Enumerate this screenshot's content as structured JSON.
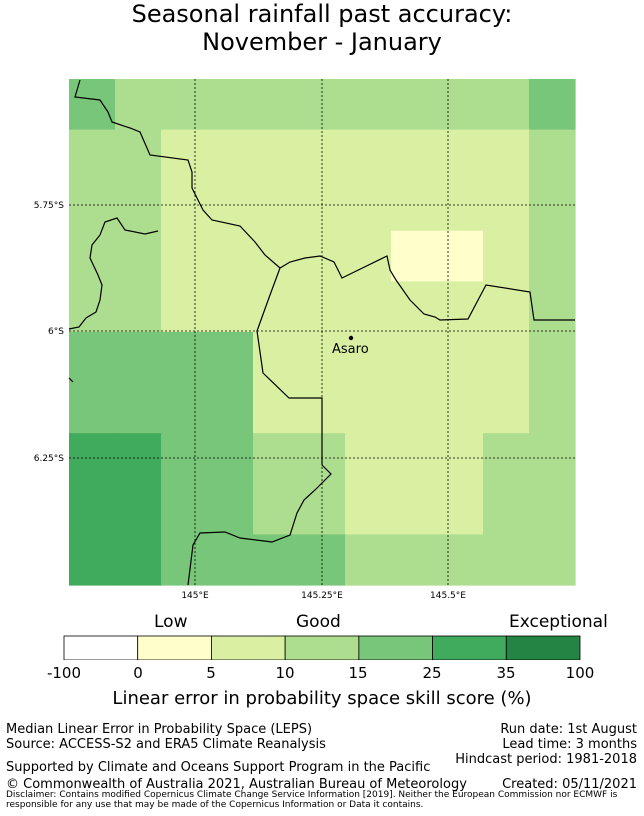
{
  "title": {
    "line1": "Seasonal rainfall past accuracy:",
    "line2": "November - January"
  },
  "map": {
    "lat_labels": [
      "5.75°S",
      "6°S",
      "6.25°S"
    ],
    "lon_labels": [
      "145°E",
      "145.25°E",
      "145.5°E"
    ],
    "place_label": "Asaro",
    "grid_values": [
      [
        15,
        10,
        10,
        10,
        10,
        10,
        10,
        10,
        10,
        10,
        15
      ],
      [
        10,
        10,
        5,
        5,
        5,
        5,
        5,
        5,
        5,
        5,
        10
      ],
      [
        10,
        10,
        5,
        5,
        5,
        5,
        5,
        5,
        5,
        5,
        10
      ],
      [
        10,
        10,
        5,
        5,
        5,
        5,
        5,
        0,
        0,
        5,
        10
      ],
      [
        10,
        10,
        5,
        5,
        5,
        5,
        5,
        5,
        5,
        5,
        10
      ],
      [
        15,
        15,
        15,
        15,
        5,
        5,
        5,
        5,
        5,
        5,
        10
      ],
      [
        15,
        15,
        15,
        15,
        5,
        5,
        5,
        5,
        5,
        5,
        10
      ],
      [
        25,
        25,
        15,
        15,
        10,
        10,
        5,
        5,
        5,
        10,
        10
      ],
      [
        25,
        25,
        15,
        15,
        10,
        10,
        5,
        5,
        5,
        10,
        10
      ],
      [
        25,
        25,
        15,
        15,
        15,
        15,
        10,
        10,
        10,
        10,
        10
      ]
    ]
  },
  "colorbar": {
    "category_labels": [
      "Low",
      "Good",
      "Exceptional"
    ],
    "tick_labels": [
      "-100",
      "0",
      "5",
      "10",
      "15",
      "25",
      "35",
      "100"
    ],
    "colors": [
      "#ffffff",
      "#ffffcc",
      "#d9f0a3",
      "#addd8e",
      "#78c679",
      "#41ab5d",
      "#238443"
    ],
    "axis_title": "Linear error in probability space skill score (%)"
  },
  "footer": {
    "left_line1": "Median Linear Error in Probability Space (LEPS)",
    "left_line2": "Source: ACCESS-S2 and ERA5 Climate Reanalysis",
    "support": "Supported by Climate and Oceans Support Program in the Pacific",
    "copyright": "© Commonwealth of Australia 2021, Australian Bureau of Meteorology",
    "run_date": "Run date: 1st August",
    "lead_time": "Lead time: 3 months",
    "hindcast": "Hindcast period: 1981-2018",
    "created": "Created: 05/11/2021",
    "disclaimer": "Disclaimer: Contains modified Copernicus Climate Change Service Information [2019]. Neither the European Commission nor ECMWF is responsible for any use that may be made of the Copernicus Information or Data it contains."
  }
}
